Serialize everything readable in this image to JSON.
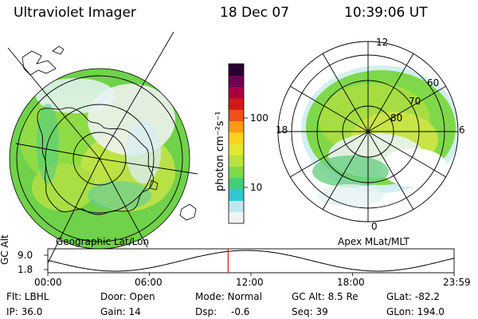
{
  "header": {
    "instrument": "Ultraviolet Imager",
    "date": "18 Dec 07",
    "time": "10:39:06 UT"
  },
  "left_panel": {
    "caption": "Geographic Lat/Lon"
  },
  "right_panel": {
    "caption": "Apex MLat/MLT",
    "mlt_labels": {
      "top": "12",
      "bottom": "0",
      "left": "18",
      "right": "6"
    },
    "lat_labels": [
      "60",
      "70",
      "80"
    ]
  },
  "colorbar": {
    "unit_label": "photon cm⁻²s⁻¹",
    "ticks": [
      "100",
      "10"
    ],
    "colors": [
      "#f2f4f4",
      "#bfe8ec",
      "#33c7d2",
      "#3fcf7a",
      "#7fd84a",
      "#b8e23e",
      "#e2e82e",
      "#ffd21c",
      "#ff9a14",
      "#f0501a",
      "#d11818",
      "#a8003c",
      "#6e0054",
      "#2a0033"
    ]
  },
  "timeline": {
    "y_axis_label": "GC Alt",
    "y_ticks": [
      "9.0",
      "1.8"
    ],
    "x_ticks": [
      "00:00",
      "06:00",
      "12:00",
      "18:00",
      "23:59"
    ],
    "current_time_hours": 10.65,
    "marker_color": "#e01010"
  },
  "status": {
    "filter": "Flt: LBHL",
    "ip": "IP: 36.0",
    "door": "Door: Open",
    "gain": "Gain: 14",
    "mode": "Mode: Normal",
    "dsp_label": "Dsp:",
    "dsp_value": "-0.6",
    "gc_alt": "GC Alt: 8.5 Re",
    "seq": "Seq: 39",
    "glat": "GLat: -82.2",
    "glon": "GLon: 194.0"
  }
}
